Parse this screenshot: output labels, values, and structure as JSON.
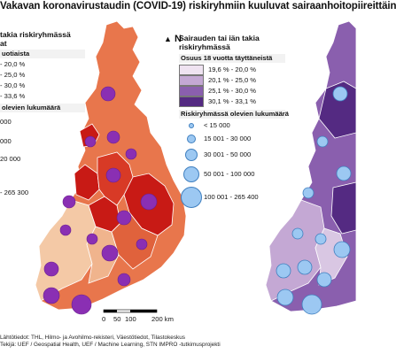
{
  "title": "Vakavan koronavirustaudin (COVID-19) riskiryhmiin kuuluvat sairaanhoitopiireittäin",
  "left_legend": {
    "head_lines": [
      "takia riskiryhmässä",
      "at"
    ],
    "sub": "uotiaista",
    "classes": [
      "- 20,0 %",
      "- 25,0 %",
      "- 30,0 %",
      "- 33,6 %"
    ],
    "count_head": "olevien lukumäärä",
    "counts": [
      "000",
      "000",
      "20 000",
      "",
      "- 265 300"
    ],
    "colors": [
      "#f4c9a6",
      "#ec9871",
      "#e0623c",
      "#c81a15"
    ]
  },
  "right_legend": {
    "head_lines": [
      "Sairauden tai iän takia",
      "riskiryhmässä"
    ],
    "sub": "Osuus 18 vuotta täyttäneistä",
    "classes": [
      "19,6 % - 20,0 %",
      "20,1 % - 25,0 %",
      "25,1 % - 30,0 %",
      "30,1 % - 33,1 %"
    ],
    "colors": [
      "#efe3f1",
      "#c4a8d4",
      "#8a5fae",
      "#542a82"
    ],
    "count_head": "Riskiryhmässä olevien lukumäärä",
    "counts": [
      "< 15 000",
      "15 001 - 30 000",
      "30 001 - 50 000",
      "50 001 - 100 000",
      "100 001 - 265 400"
    ]
  },
  "north_symbol": "▲",
  "north_label": "N",
  "scale": {
    "labels": [
      "0",
      "50",
      "100",
      "200 km"
    ]
  },
  "sources": [
    "Lähtötiedot: THL, Hilmo- ja Avohilmo-rekisteri, Väestötiedot, Tilastokeskus",
    "Tekijä: UEF / Geospatial Health, UEF / Machine Learning, STN IMPRO -tutkimusprojekti"
  ],
  "colors": {
    "left_circle_fill": "#8a2fb3",
    "right_circle_fill": "#9cc8f2",
    "right_circle_stroke": "#3f7fbf"
  }
}
